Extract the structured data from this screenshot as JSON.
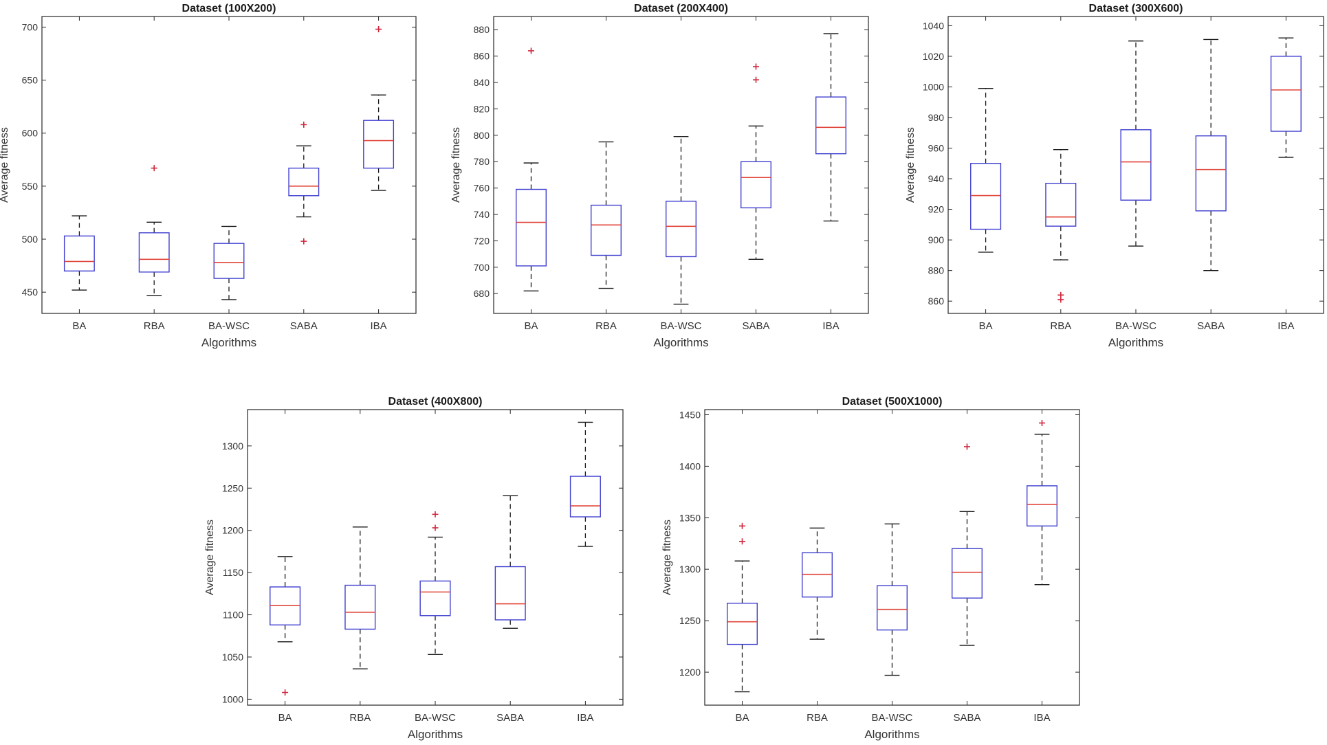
{
  "chart_data": [
    {
      "type": "boxplot",
      "title": "Dataset (100X200)",
      "xlabel": "Algorithms",
      "ylabel": "Average fitness",
      "ylim": [
        430,
        710
      ],
      "yticks": [
        450,
        500,
        550,
        600,
        650,
        700
      ],
      "categories": [
        "BA",
        "RBA",
        "BA-WSC",
        "SABA",
        "IBA"
      ],
      "boxes": [
        {
          "whisker_low": 452,
          "q1": 470,
          "median": 479,
          "q3": 503,
          "whisker_high": 522,
          "outliers": []
        },
        {
          "whisker_low": 447,
          "q1": 469,
          "median": 481,
          "q3": 506,
          "whisker_high": 516,
          "outliers": [
            567
          ]
        },
        {
          "whisker_low": 443,
          "q1": 463,
          "median": 478,
          "q3": 496,
          "whisker_high": 512,
          "outliers": []
        },
        {
          "whisker_low": 521,
          "q1": 541,
          "median": 550,
          "q3": 567,
          "whisker_high": 588,
          "outliers": [
            498,
            608
          ]
        },
        {
          "whisker_low": 546,
          "q1": 567,
          "median": 593,
          "q3": 612,
          "whisker_high": 636,
          "outliers": [
            698
          ]
        }
      ]
    },
    {
      "type": "boxplot",
      "title": "Dataset (200X400)",
      "xlabel": "Algorithms",
      "ylabel": "Average fitness",
      "ylim": [
        665,
        890
      ],
      "yticks": [
        680,
        700,
        720,
        740,
        760,
        780,
        800,
        820,
        840,
        860,
        880
      ],
      "categories": [
        "BA",
        "RBA",
        "BA-WSC",
        "SABA",
        "IBA"
      ],
      "boxes": [
        {
          "whisker_low": 682,
          "q1": 701,
          "median": 734,
          "q3": 759,
          "whisker_high": 779,
          "outliers": [
            864
          ]
        },
        {
          "whisker_low": 684,
          "q1": 709,
          "median": 732,
          "q3": 747,
          "whisker_high": 795,
          "outliers": []
        },
        {
          "whisker_low": 672,
          "q1": 708,
          "median": 731,
          "q3": 750,
          "whisker_high": 799,
          "outliers": []
        },
        {
          "whisker_low": 706,
          "q1": 745,
          "median": 768,
          "q3": 780,
          "whisker_high": 807,
          "outliers": [
            842,
            852
          ]
        },
        {
          "whisker_low": 735,
          "q1": 786,
          "median": 806,
          "q3": 829,
          "whisker_high": 877,
          "outliers": []
        }
      ]
    },
    {
      "type": "boxplot",
      "title": "Dataset (300X600)",
      "xlabel": "Algorithms",
      "ylabel": "Average fitness",
      "ylim": [
        852,
        1046
      ],
      "yticks": [
        860,
        880,
        900,
        920,
        940,
        960,
        980,
        1000,
        1020,
        1040
      ],
      "categories": [
        "BA",
        "RBA",
        "BA-WSC",
        "SABA",
        "IBA"
      ],
      "boxes": [
        {
          "whisker_low": 892,
          "q1": 907,
          "median": 929,
          "q3": 950,
          "whisker_high": 999,
          "outliers": []
        },
        {
          "whisker_low": 887,
          "q1": 909,
          "median": 915,
          "q3": 937,
          "whisker_high": 959,
          "outliers": [
            861,
            864
          ]
        },
        {
          "whisker_low": 896,
          "q1": 926,
          "median": 951,
          "q3": 972,
          "whisker_high": 1030,
          "outliers": []
        },
        {
          "whisker_low": 880,
          "q1": 919,
          "median": 946,
          "q3": 968,
          "whisker_high": 1031,
          "outliers": []
        },
        {
          "whisker_low": 954,
          "q1": 971,
          "median": 998,
          "q3": 1020,
          "whisker_high": 1032,
          "outliers": []
        }
      ]
    },
    {
      "type": "boxplot",
      "title": "Dataset (400X800)",
      "xlabel": "Algorithms",
      "ylabel": "Average fitness",
      "ylim": [
        993,
        1343
      ],
      "yticks": [
        1000,
        1050,
        1100,
        1150,
        1200,
        1250,
        1300
      ],
      "categories": [
        "BA",
        "RBA",
        "BA-WSC",
        "SABA",
        "IBA"
      ],
      "boxes": [
        {
          "whisker_low": 1068,
          "q1": 1088,
          "median": 1111,
          "q3": 1133,
          "whisker_high": 1169,
          "outliers": [
            1008
          ]
        },
        {
          "whisker_low": 1036,
          "q1": 1083,
          "median": 1103,
          "q3": 1135,
          "whisker_high": 1204,
          "outliers": []
        },
        {
          "whisker_low": 1053,
          "q1": 1099,
          "median": 1127,
          "q3": 1140,
          "whisker_high": 1192,
          "outliers": [
            1203,
            1219
          ]
        },
        {
          "whisker_low": 1084,
          "q1": 1094,
          "median": 1113,
          "q3": 1157,
          "whisker_high": 1241,
          "outliers": []
        },
        {
          "whisker_low": 1181,
          "q1": 1216,
          "median": 1229,
          "q3": 1264,
          "whisker_high": 1328,
          "outliers": []
        }
      ]
    },
    {
      "type": "boxplot",
      "title": "Dataset (500X1000)",
      "xlabel": "Algorithms",
      "ylabel": "Average fitness",
      "ylim": [
        1168,
        1455
      ],
      "yticks": [
        1200,
        1250,
        1300,
        1350,
        1400,
        1450
      ],
      "categories": [
        "BA",
        "RBA",
        "BA-WSC",
        "SABA",
        "IBA"
      ],
      "boxes": [
        {
          "whisker_low": 1181,
          "q1": 1227,
          "median": 1249,
          "q3": 1267,
          "whisker_high": 1308,
          "outliers": [
            1327,
            1342
          ]
        },
        {
          "whisker_low": 1232,
          "q1": 1273,
          "median": 1295,
          "q3": 1316,
          "whisker_high": 1340,
          "outliers": []
        },
        {
          "whisker_low": 1197,
          "q1": 1241,
          "median": 1261,
          "q3": 1284,
          "whisker_high": 1344,
          "outliers": []
        },
        {
          "whisker_low": 1226,
          "q1": 1272,
          "median": 1297,
          "q3": 1320,
          "whisker_high": 1356,
          "outliers": [
            1419
          ]
        },
        {
          "whisker_low": 1285,
          "q1": 1342,
          "median": 1363,
          "q3": 1381,
          "whisker_high": 1431,
          "outliers": [
            1442
          ]
        }
      ]
    }
  ],
  "colors": {
    "axis": "#262626",
    "box": "#3f3fd0",
    "median": "#e0453a",
    "whisker": "#1a1a1a",
    "outlier": "#d0263c"
  }
}
